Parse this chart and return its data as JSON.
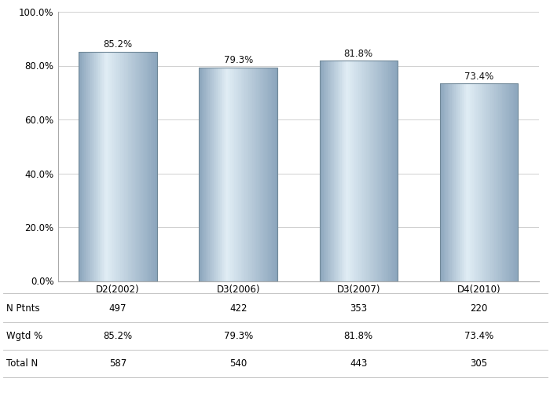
{
  "categories": [
    "D2(2002)",
    "D3(2006)",
    "D3(2007)",
    "D4(2010)"
  ],
  "values": [
    85.2,
    79.3,
    81.8,
    73.4
  ],
  "n_ptnts": [
    "497",
    "422",
    "353",
    "220"
  ],
  "wgtd_pct": [
    "85.2%",
    "79.3%",
    "81.8%",
    "73.4%"
  ],
  "total_n": [
    "587",
    "540",
    "443",
    "305"
  ],
  "ylim": [
    0,
    100
  ],
  "yticks": [
    0,
    20,
    40,
    60,
    80,
    100
  ],
  "ytick_labels": [
    "0.0%",
    "20.0%",
    "40.0%",
    "60.0%",
    "80.0%",
    "100.0%"
  ],
  "background_color": "#ffffff",
  "grid_color": "#d0d0d0",
  "label_fontsize": 8.5,
  "tick_fontsize": 8.5,
  "table_fontsize": 8.5,
  "row_labels": [
    "N Ptnts",
    "Wgtd %",
    "Total N"
  ],
  "bar_width": 0.65,
  "bar_base_color": [
    0.72,
    0.8,
    0.87
  ],
  "bar_light_color": [
    0.88,
    0.93,
    0.96
  ],
  "bar_dark_color": [
    0.55,
    0.65,
    0.74
  ],
  "bar_edge_color": "#708898",
  "num_gradient_strips": 60
}
